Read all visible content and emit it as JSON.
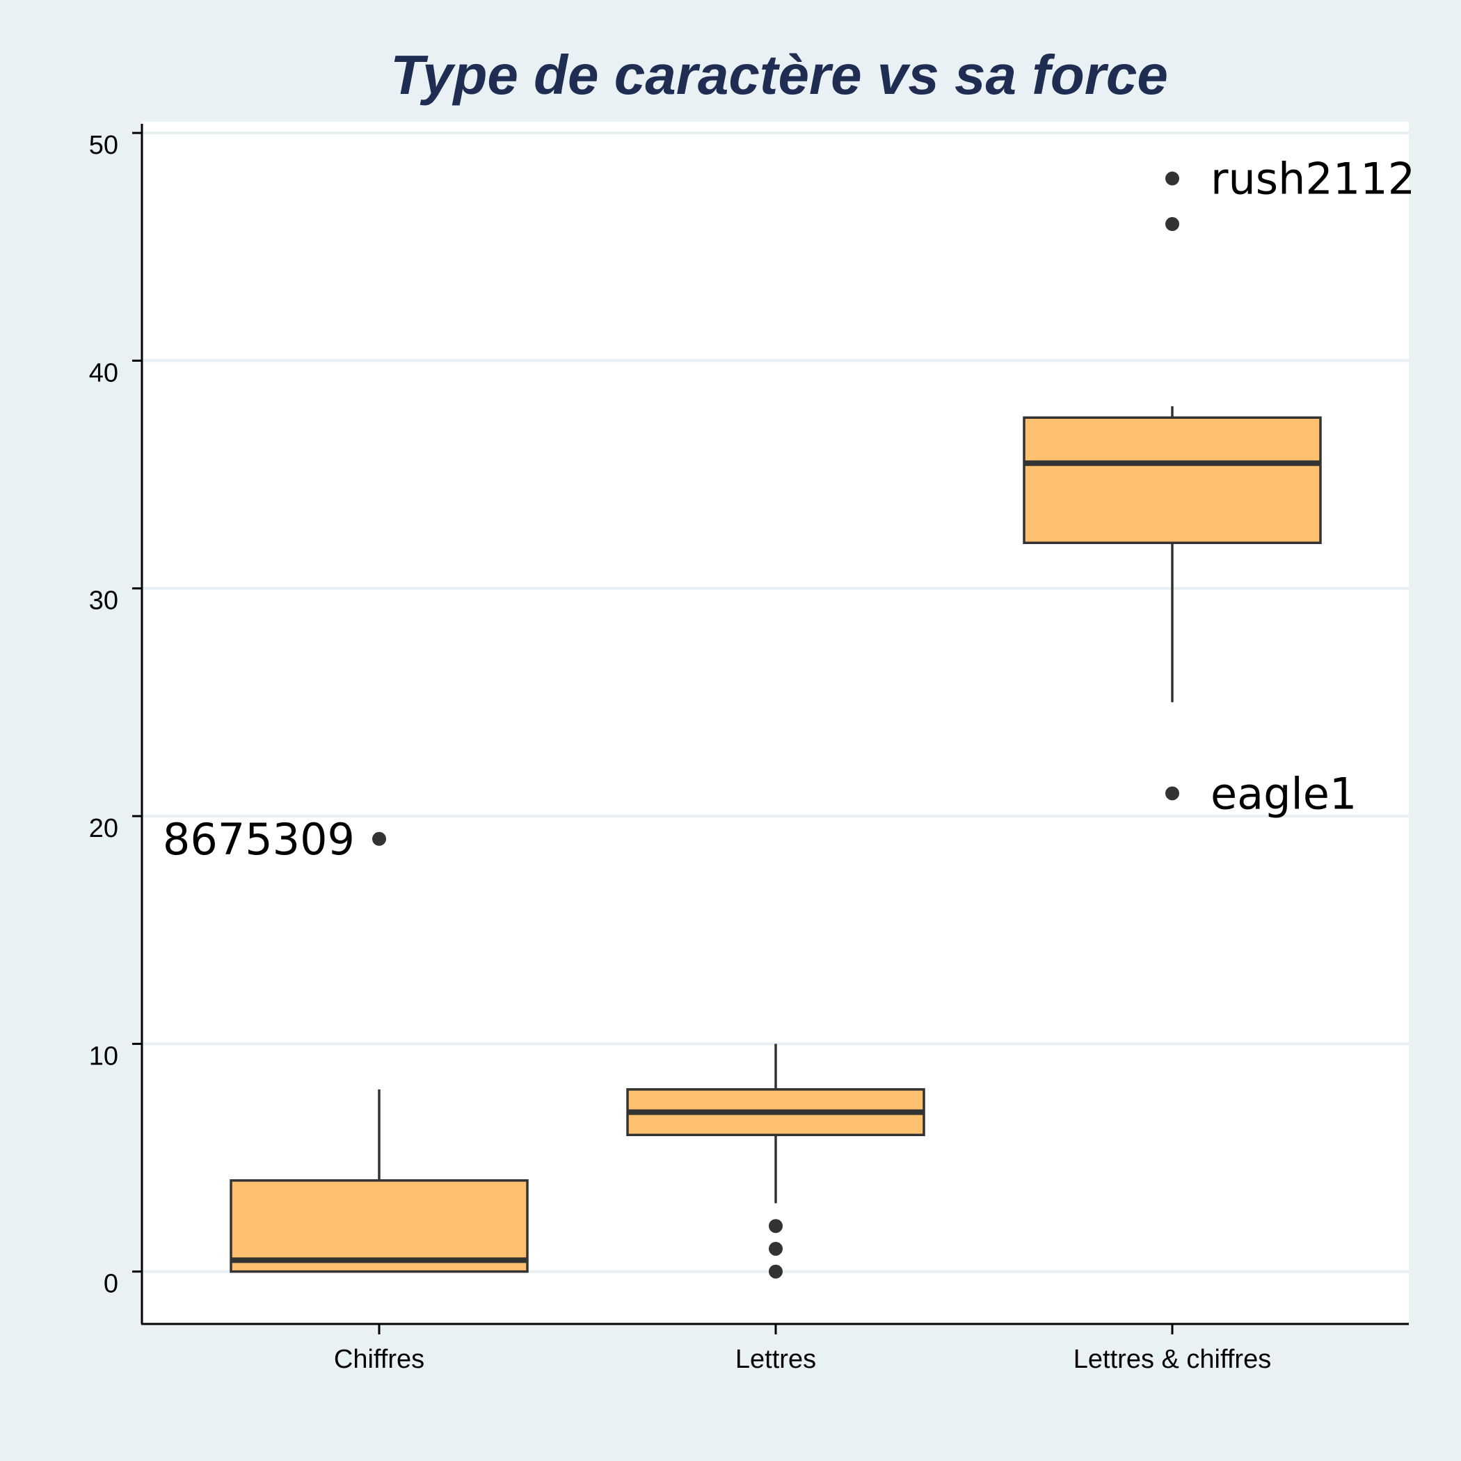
{
  "chart_data": {
    "type": "box",
    "title": "Type de caractère vs sa force",
    "xlabel": "",
    "ylabel": "",
    "ylim": [
      -2.3,
      50.4
    ],
    "yticks": [
      0,
      10,
      20,
      30,
      40,
      50
    ],
    "grid": true,
    "colors": {
      "box_fill": "#ffc070",
      "box_stroke": "#333333",
      "grid": "#eaf1f4",
      "plot_bg": "#ffffff",
      "page_bg": "#eaf1f4",
      "title": "#1f2d52"
    },
    "categories": [
      "Chiffres",
      "Lettres",
      "Lettres & chiffres"
    ],
    "boxes": [
      {
        "category": "Chiffres",
        "whisker_low": 0,
        "q1": 0,
        "median": 0.5,
        "q3": 4,
        "whisker_high": 8,
        "outliers": [
          19
        ]
      },
      {
        "category": "Lettres",
        "whisker_low": 3,
        "q1": 6,
        "median": 7,
        "q3": 8,
        "whisker_high": 10,
        "outliers": [
          0,
          1,
          2
        ]
      },
      {
        "category": "Lettres & chiffres",
        "whisker_low": 25,
        "q1": 32,
        "median": 35.5,
        "q3": 37.5,
        "whisker_high": 38,
        "outliers": [
          21,
          46,
          48
        ]
      }
    ],
    "annotations": [
      {
        "text": "8675309",
        "category": "Chiffres",
        "y": 19,
        "side": "left"
      },
      {
        "text": "eagle1",
        "category": "Lettres & chiffres",
        "y": 21,
        "side": "right"
      },
      {
        "text": "rush2112",
        "category": "Lettres & chiffres",
        "y": 48,
        "side": "right"
      }
    ]
  }
}
